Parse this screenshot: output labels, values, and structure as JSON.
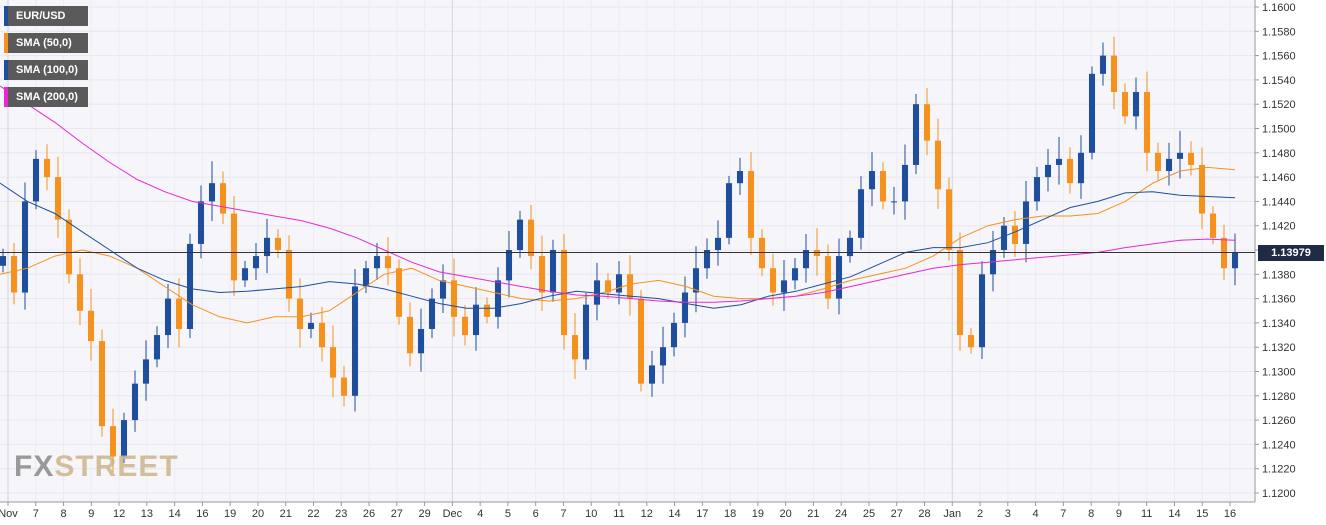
{
  "legend": [
    {
      "label": "EUR/USD",
      "color": "#1f4e9c"
    },
    {
      "label": "SMA (50,0)",
      "color": "#f5921e"
    },
    {
      "label": "SMA (100,0)",
      "color": "#1f4e9c"
    },
    {
      "label": "SMA (200,0)",
      "color": "#e629d2"
    }
  ],
  "watermark": {
    "fx": "FX",
    "street": "STREET"
  },
  "last_price": "1.13979",
  "chart_data": {
    "type": "candlestick",
    "xlabel": "",
    "ylabel": "",
    "ylim": [
      1.12,
      1.16
    ],
    "grid": true,
    "y_ticks": [
      "1.1200",
      "1.1220",
      "1.1240",
      "1.1260",
      "1.1280",
      "1.1300",
      "1.1320",
      "1.1340",
      "1.1360",
      "1.1380",
      "1.1400",
      "1.1420",
      "1.1440",
      "1.1460",
      "1.1480",
      "1.1500",
      "1.1520",
      "1.1540",
      "1.1560",
      "1.1580",
      "1.1600"
    ],
    "x_tick_labels": [
      "Nov",
      "7",
      "8",
      "9",
      "12",
      "13",
      "14",
      "16",
      "19",
      "20",
      "21",
      "22",
      "23",
      "26",
      "27",
      "29",
      "Dec",
      "4",
      "5",
      "6",
      "7",
      "10",
      "11",
      "12",
      "14",
      "17",
      "18",
      "19",
      "20",
      "21",
      "24",
      "25",
      "27",
      "28",
      "Jan",
      "2",
      "3",
      "4",
      "7",
      "8",
      "9",
      "11",
      "14",
      "15",
      "16"
    ],
    "close_path": [
      1.1395,
      1.1365,
      1.144,
      1.1475,
      1.146,
      1.1425,
      1.138,
      1.135,
      1.1325,
      1.1255,
      1.123,
      1.126,
      1.129,
      1.131,
      1.133,
      1.136,
      1.1335,
      1.1405,
      1.144,
      1.1455,
      1.143,
      1.1375,
      1.1385,
      1.1395,
      1.141,
      1.14,
      1.136,
      1.1335,
      1.134,
      1.132,
      1.1295,
      1.128,
      1.137,
      1.1385,
      1.1395,
      1.1385,
      1.1345,
      1.1315,
      1.1335,
      1.136,
      1.1375,
      1.1345,
      1.133,
      1.1355,
      1.1345,
      1.1375,
      1.14,
      1.1425,
      1.1395,
      1.1365,
      1.14,
      1.133,
      1.131,
      1.1355,
      1.1375,
      1.1365,
      1.138,
      1.136,
      1.129,
      1.1305,
      1.132,
      1.134,
      1.1365,
      1.1385,
      1.14,
      1.141,
      1.1455,
      1.1465,
      1.141,
      1.1385,
      1.1365,
      1.1375,
      1.1385,
      1.14,
      1.1395,
      1.136,
      1.1395,
      1.141,
      1.145,
      1.1465,
      1.144,
      1.144,
      1.147,
      1.152,
      1.149,
      1.145,
      1.14,
      1.133,
      1.132,
      1.138,
      1.14,
      1.142,
      1.1405,
      1.144,
      1.146,
      1.147,
      1.1475,
      1.1455,
      1.148,
      1.1545,
      1.156,
      1.153,
      1.151,
      1.153,
      1.148,
      1.1465,
      1.1475,
      1.148,
      1.147,
      1.143,
      1.141,
      1.1385,
      1.13979
    ],
    "series": [
      {
        "name": "SMA (50,0)",
        "values": [
          1.138,
          1.1385,
          1.1395,
          1.14,
          1.1395,
          1.1385,
          1.137,
          1.1355,
          1.1345,
          1.134,
          1.1345,
          1.1345,
          1.135,
          1.1365,
          1.138,
          1.1385,
          1.1375,
          1.137,
          1.1365,
          1.136,
          1.1358,
          1.136,
          1.1365,
          1.1372,
          1.1375,
          1.137,
          1.1362,
          1.136,
          1.136,
          1.1362,
          1.1368,
          1.1375,
          1.138,
          1.1385,
          1.1395,
          1.141,
          1.142,
          1.1425,
          1.1428,
          1.1428,
          1.143,
          1.144,
          1.1455,
          1.1465,
          1.1468,
          1.1466
        ]
      },
      {
        "name": "SMA (100,0)",
        "values": [
          1.1455,
          1.144,
          1.143,
          1.1415,
          1.14,
          1.1385,
          1.1375,
          1.1368,
          1.1365,
          1.1366,
          1.1368,
          1.137,
          1.1374,
          1.1372,
          1.1368,
          1.1362,
          1.1356,
          1.1352,
          1.1352,
          1.1356,
          1.1362,
          1.1366,
          1.1364,
          1.1362,
          1.136,
          1.1356,
          1.1352,
          1.1355,
          1.1362,
          1.1366,
          1.1372,
          1.1378,
          1.1388,
          1.1398,
          1.1402,
          1.1402,
          1.1406,
          1.1415,
          1.1425,
          1.1435,
          1.144,
          1.1447,
          1.1448,
          1.1445,
          1.1444,
          1.1443
        ]
      },
      {
        "name": "SMA (200,0)",
        "values": [
          1.1535,
          1.152,
          1.1505,
          1.1488,
          1.1472,
          1.1458,
          1.1448,
          1.144,
          1.1436,
          1.1432,
          1.1428,
          1.1424,
          1.1418,
          1.141,
          1.14,
          1.139,
          1.1382,
          1.1378,
          1.1374,
          1.137,
          1.1366,
          1.1363,
          1.1362,
          1.136,
          1.1358,
          1.1357,
          1.1357,
          1.1358,
          1.136,
          1.1362,
          1.1365,
          1.137,
          1.1375,
          1.138,
          1.1385,
          1.1388,
          1.139,
          1.1392,
          1.1394,
          1.1396,
          1.1398,
          1.1402,
          1.1405,
          1.1408,
          1.1409,
          1.1408
        ]
      }
    ]
  }
}
